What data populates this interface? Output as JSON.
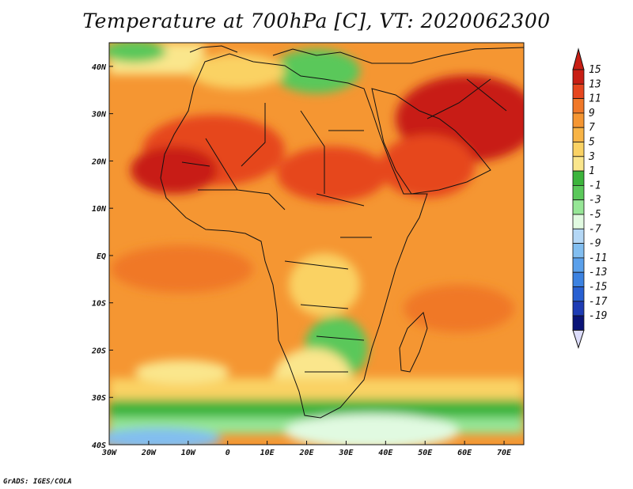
{
  "title": "Temperature at 700hPa [C], VT: 2020062300",
  "credit": "GrADS: IGES/COLA",
  "map": {
    "lon_range": [
      -30,
      75
    ],
    "lat_range": [
      -40,
      45
    ],
    "lon_ticks": [
      {
        "value": -30,
        "label": "30W"
      },
      {
        "value": -20,
        "label": "20W"
      },
      {
        "value": -10,
        "label": "10W"
      },
      {
        "value": 0,
        "label": "0"
      },
      {
        "value": 10,
        "label": "10E"
      },
      {
        "value": 20,
        "label": "20E"
      },
      {
        "value": 30,
        "label": "30E"
      },
      {
        "value": 40,
        "label": "40E"
      },
      {
        "value": 50,
        "label": "50E"
      },
      {
        "value": 60,
        "label": "60E"
      },
      {
        "value": 70,
        "label": "70E"
      }
    ],
    "lat_ticks": [
      {
        "value": 40,
        "label": "40N"
      },
      {
        "value": 30,
        "label": "30N"
      },
      {
        "value": 20,
        "label": "20N"
      },
      {
        "value": 10,
        "label": "10N"
      },
      {
        "value": 0,
        "label": "EQ"
      },
      {
        "value": -10,
        "label": "10S"
      },
      {
        "value": -20,
        "label": "20S"
      },
      {
        "value": -30,
        "label": "30S"
      },
      {
        "value": -40,
        "label": "40S"
      }
    ]
  },
  "colorbar": {
    "levels": [
      {
        "label": "15",
        "color": "#c81e14"
      },
      {
        "label": "13",
        "color": "#e6461e"
      },
      {
        "label": "11",
        "color": "#f07828"
      },
      {
        "label": "9",
        "color": "#f59632"
      },
      {
        "label": "7",
        "color": "#f8b446"
      },
      {
        "label": "5",
        "color": "#fad264"
      },
      {
        "label": "3",
        "color": "#fae68c"
      },
      {
        "label": "1",
        "color": "#3cb43c"
      },
      {
        "label": "-1",
        "color": "#5ac85a"
      },
      {
        "label": "-3",
        "color": "#96e696"
      },
      {
        "label": "-5",
        "color": "#e1fae1"
      },
      {
        "label": "-7",
        "color": "#b4d7f5"
      },
      {
        "label": "-9",
        "color": "#82bef0"
      },
      {
        "label": "-11",
        "color": "#5aa0eb"
      },
      {
        "label": "-13",
        "color": "#3c82e1"
      },
      {
        "label": "-15",
        "color": "#2860d2"
      },
      {
        "label": "-17",
        "color": "#1e3cb4"
      },
      {
        "label": "-19",
        "color": "#0a1478"
      }
    ],
    "over_color": "#c81e14",
    "under_color": "#dcdcfa"
  }
}
